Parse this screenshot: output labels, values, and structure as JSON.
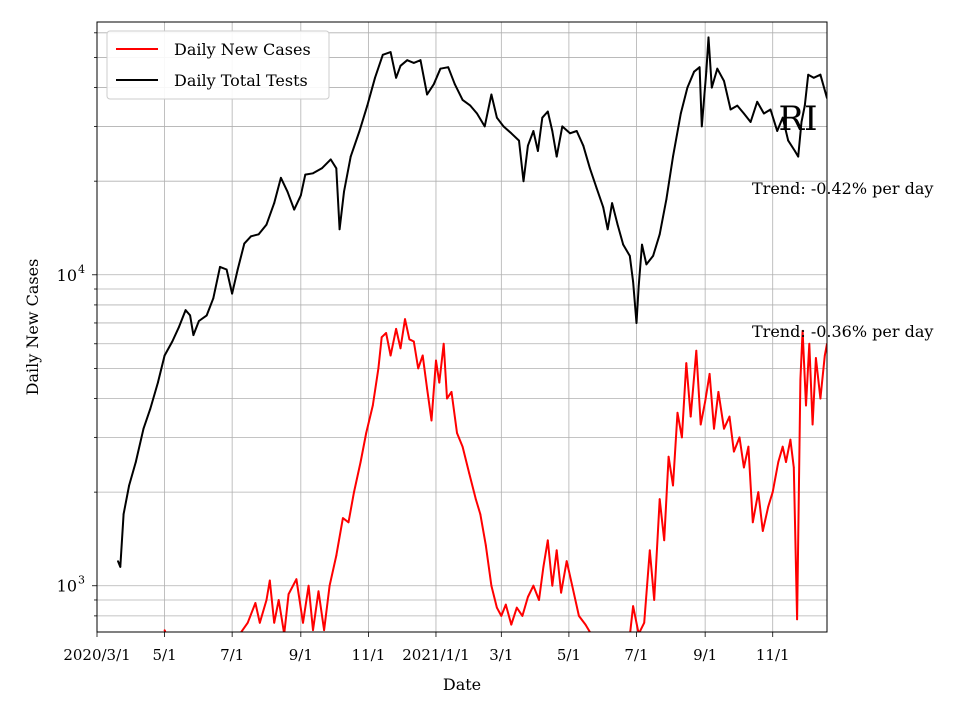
{
  "chart_data": {
    "type": "line",
    "title": "",
    "state_label": "RI",
    "xlabel": "Date",
    "ylabel": "Daily New Cases",
    "yscale": "log",
    "ylim": [
      710,
      65000
    ],
    "xlim": [
      "2020-03-01",
      "2021-12-20"
    ],
    "grid": true,
    "legend_position": "top-left",
    "x_ticks": [
      {
        "date": "2020-03-01",
        "label": "2020/3/1"
      },
      {
        "date": "2020-05-01",
        "label": "5/1"
      },
      {
        "date": "2020-07-01",
        "label": "7/1"
      },
      {
        "date": "2020-09-01",
        "label": "9/1"
      },
      {
        "date": "2020-11-01",
        "label": "11/1"
      },
      {
        "date": "2021-01-01",
        "label": "2021/1/1"
      },
      {
        "date": "2021-03-01",
        "label": "3/1"
      },
      {
        "date": "2021-05-01",
        "label": "5/1"
      },
      {
        "date": "2021-07-01",
        "label": "7/1"
      },
      {
        "date": "2021-09-01",
        "label": "9/1"
      },
      {
        "date": "2021-11-01",
        "label": "11/1"
      }
    ],
    "y_major_ticks": [
      {
        "value": 1000,
        "base": "10",
        "exp": "3"
      },
      {
        "value": 10000,
        "base": "10",
        "exp": "4"
      }
    ],
    "annotations": [
      "Trend: -0.42% per day",
      "Trend: -0.36% per day"
    ],
    "series": [
      {
        "name": "Daily New Cases",
        "color": "#ff0000",
        "points": [
          [
            "2020-05-01",
            720
          ],
          [
            "2020-05-03",
            690
          ],
          [
            "2020-07-01",
            650
          ],
          [
            "2020-07-08",
            700
          ],
          [
            "2020-07-15",
            760
          ],
          [
            "2020-07-22",
            880
          ],
          [
            "2020-07-26",
            760
          ],
          [
            "2020-08-01",
            900
          ],
          [
            "2020-08-04",
            1040
          ],
          [
            "2020-08-08",
            760
          ],
          [
            "2020-08-12",
            900
          ],
          [
            "2020-08-17",
            700
          ],
          [
            "2020-08-21",
            940
          ],
          [
            "2020-08-28",
            1050
          ],
          [
            "2020-09-03",
            760
          ],
          [
            "2020-09-08",
            1000
          ],
          [
            "2020-09-12",
            720
          ],
          [
            "2020-09-17",
            960
          ],
          [
            "2020-09-22",
            720
          ],
          [
            "2020-09-27",
            1000
          ],
          [
            "2020-10-03",
            1250
          ],
          [
            "2020-10-09",
            1650
          ],
          [
            "2020-10-14",
            1600
          ],
          [
            "2020-10-19",
            2000
          ],
          [
            "2020-10-25",
            2500
          ],
          [
            "2020-10-30",
            3100
          ],
          [
            "2020-11-05",
            3800
          ],
          [
            "2020-11-10",
            5000
          ],
          [
            "2020-11-13",
            6300
          ],
          [
            "2020-11-17",
            6500
          ],
          [
            "2020-11-21",
            5500
          ],
          [
            "2020-11-26",
            6700
          ],
          [
            "2020-11-30",
            5800
          ],
          [
            "2020-12-04",
            7200
          ],
          [
            "2020-12-08",
            6200
          ],
          [
            "2020-12-12",
            6100
          ],
          [
            "2020-12-16",
            5000
          ],
          [
            "2020-12-20",
            5500
          ],
          [
            "2020-12-24",
            4300
          ],
          [
            "2020-12-28",
            3400
          ],
          [
            "2021-01-01",
            5300
          ],
          [
            "2021-01-04",
            4500
          ],
          [
            "2021-01-08",
            6000
          ],
          [
            "2021-01-11",
            4000
          ],
          [
            "2021-01-15",
            4200
          ],
          [
            "2021-01-20",
            3100
          ],
          [
            "2021-01-25",
            2800
          ],
          [
            "2021-01-31",
            2300
          ],
          [
            "2021-02-06",
            1900
          ],
          [
            "2021-02-10",
            1700
          ],
          [
            "2021-02-15",
            1350
          ],
          [
            "2021-02-20",
            1000
          ],
          [
            "2021-02-25",
            850
          ],
          [
            "2021-03-01",
            800
          ],
          [
            "2021-03-05",
            870
          ],
          [
            "2021-03-10",
            750
          ],
          [
            "2021-03-15",
            850
          ],
          [
            "2021-03-20",
            800
          ],
          [
            "2021-03-25",
            920
          ],
          [
            "2021-03-30",
            1000
          ],
          [
            "2021-04-04",
            900
          ],
          [
            "2021-04-08",
            1150
          ],
          [
            "2021-04-12",
            1400
          ],
          [
            "2021-04-16",
            1000
          ],
          [
            "2021-04-20",
            1300
          ],
          [
            "2021-04-24",
            950
          ],
          [
            "2021-04-29",
            1200
          ],
          [
            "2021-05-04",
            1000
          ],
          [
            "2021-05-10",
            800
          ],
          [
            "2021-05-16",
            750
          ],
          [
            "2021-05-20",
            710
          ],
          [
            "2021-05-24",
            690
          ],
          [
            "2021-06-25",
            690
          ],
          [
            "2021-06-28",
            860
          ],
          [
            "2021-07-03",
            700
          ],
          [
            "2021-07-08",
            760
          ],
          [
            "2021-07-13",
            1300
          ],
          [
            "2021-07-17",
            900
          ],
          [
            "2021-07-22",
            1900
          ],
          [
            "2021-07-26",
            1400
          ],
          [
            "2021-07-30",
            2600
          ],
          [
            "2021-08-03",
            2100
          ],
          [
            "2021-08-07",
            3600
          ],
          [
            "2021-08-11",
            3000
          ],
          [
            "2021-08-15",
            5200
          ],
          [
            "2021-08-19",
            3500
          ],
          [
            "2021-08-24",
            5700
          ],
          [
            "2021-08-28",
            3300
          ],
          [
            "2021-09-01",
            3900
          ],
          [
            "2021-09-05",
            4800
          ],
          [
            "2021-09-09",
            3200
          ],
          [
            "2021-09-13",
            4200
          ],
          [
            "2021-09-18",
            3200
          ],
          [
            "2021-09-23",
            3500
          ],
          [
            "2021-09-27",
            2700
          ],
          [
            "2021-10-02",
            3000
          ],
          [
            "2021-10-06",
            2400
          ],
          [
            "2021-10-10",
            2800
          ],
          [
            "2021-10-14",
            1600
          ],
          [
            "2021-10-19",
            2000
          ],
          [
            "2021-10-23",
            1500
          ],
          [
            "2021-10-28",
            1800
          ],
          [
            "2021-11-01",
            2000
          ],
          [
            "2021-11-06",
            2500
          ],
          [
            "2021-11-10",
            2800
          ],
          [
            "2021-11-13",
            2500
          ],
          [
            "2021-11-17",
            2950
          ],
          [
            "2021-11-20",
            2400
          ],
          [
            "2021-11-23",
            780
          ],
          [
            "2021-11-26",
            4600
          ],
          [
            "2021-11-28",
            6600
          ],
          [
            "2021-12-01",
            3800
          ],
          [
            "2021-12-04",
            6000
          ],
          [
            "2021-12-07",
            3300
          ],
          [
            "2021-12-10",
            5400
          ],
          [
            "2021-12-14",
            4000
          ],
          [
            "2021-12-18",
            5500
          ],
          [
            "2021-12-20",
            6000
          ]
        ]
      },
      {
        "name": "Daily Total Tests",
        "color": "#000000",
        "points": [
          [
            "2020-03-20",
            1200
          ],
          [
            "2020-03-22",
            1150
          ],
          [
            "2020-03-25",
            1700
          ],
          [
            "2020-03-30",
            2100
          ],
          [
            "2020-04-05",
            2500
          ],
          [
            "2020-04-12",
            3200
          ],
          [
            "2020-04-18",
            3700
          ],
          [
            "2020-04-25",
            4500
          ],
          [
            "2020-05-01",
            5500
          ],
          [
            "2020-05-08",
            6100
          ],
          [
            "2020-05-14",
            6800
          ],
          [
            "2020-05-20",
            7700
          ],
          [
            "2020-05-24",
            7400
          ],
          [
            "2020-05-27",
            6400
          ],
          [
            "2020-06-01",
            7100
          ],
          [
            "2020-06-08",
            7400
          ],
          [
            "2020-06-14",
            8400
          ],
          [
            "2020-06-20",
            10600
          ],
          [
            "2020-06-26",
            10400
          ],
          [
            "2020-07-01",
            8700
          ],
          [
            "2020-07-06",
            10400
          ],
          [
            "2020-07-12",
            12600
          ],
          [
            "2020-07-18",
            13300
          ],
          [
            "2020-07-25",
            13500
          ],
          [
            "2020-08-01",
            14500
          ],
          [
            "2020-08-08",
            17000
          ],
          [
            "2020-08-14",
            20500
          ],
          [
            "2020-08-20",
            18500
          ],
          [
            "2020-08-26",
            16200
          ],
          [
            "2020-09-01",
            18000
          ],
          [
            "2020-09-05",
            21000
          ],
          [
            "2020-09-12",
            21200
          ],
          [
            "2020-09-20",
            22000
          ],
          [
            "2020-09-28",
            23500
          ],
          [
            "2020-10-03",
            22000
          ],
          [
            "2020-10-06",
            14000
          ],
          [
            "2020-10-10",
            18500
          ],
          [
            "2020-10-16",
            24000
          ],
          [
            "2020-10-24",
            29000
          ],
          [
            "2020-10-31",
            35000
          ],
          [
            "2020-11-07",
            43000
          ],
          [
            "2020-11-14",
            51000
          ],
          [
            "2020-11-21",
            52000
          ],
          [
            "2020-11-26",
            43000
          ],
          [
            "2020-11-30",
            47000
          ],
          [
            "2020-12-06",
            49000
          ],
          [
            "2020-12-12",
            48000
          ],
          [
            "2020-12-18",
            49000
          ],
          [
            "2020-12-24",
            38000
          ],
          [
            "2020-12-30",
            41000
          ],
          [
            "2021-01-05",
            46000
          ],
          [
            "2021-01-12",
            46500
          ],
          [
            "2021-01-18",
            41000
          ],
          [
            "2021-01-25",
            36500
          ],
          [
            "2021-02-01",
            35000
          ],
          [
            "2021-02-07",
            33000
          ],
          [
            "2021-02-14",
            30000
          ],
          [
            "2021-02-20",
            38000
          ],
          [
            "2021-02-25",
            32000
          ],
          [
            "2021-03-03",
            30000
          ],
          [
            "2021-03-10",
            28500
          ],
          [
            "2021-03-17",
            27000
          ],
          [
            "2021-03-21",
            20000
          ],
          [
            "2021-03-25",
            26000
          ],
          [
            "2021-03-30",
            29000
          ],
          [
            "2021-04-03",
            25000
          ],
          [
            "2021-04-07",
            32000
          ],
          [
            "2021-04-12",
            33500
          ],
          [
            "2021-04-16",
            29000
          ],
          [
            "2021-04-20",
            24000
          ],
          [
            "2021-04-25",
            30000
          ],
          [
            "2021-05-02",
            28500
          ],
          [
            "2021-05-08",
            29000
          ],
          [
            "2021-05-14",
            26000
          ],
          [
            "2021-05-20",
            22000
          ],
          [
            "2021-05-26",
            19000
          ],
          [
            "2021-06-01",
            16500
          ],
          [
            "2021-06-05",
            14000
          ],
          [
            "2021-06-09",
            17000
          ],
          [
            "2021-06-14",
            14500
          ],
          [
            "2021-06-19",
            12500
          ],
          [
            "2021-06-25",
            11500
          ],
          [
            "2021-06-28",
            9500
          ],
          [
            "2021-07-01",
            7000
          ],
          [
            "2021-07-03",
            9200
          ],
          [
            "2021-07-06",
            12500
          ],
          [
            "2021-07-10",
            10800
          ],
          [
            "2021-07-16",
            11500
          ],
          [
            "2021-07-22",
            13500
          ],
          [
            "2021-07-28",
            17500
          ],
          [
            "2021-08-03",
            24000
          ],
          [
            "2021-08-10",
            33000
          ],
          [
            "2021-08-16",
            40000
          ],
          [
            "2021-08-22",
            45000
          ],
          [
            "2021-08-27",
            46500
          ],
          [
            "2021-08-29",
            30000
          ],
          [
            "2021-09-02",
            45000
          ],
          [
            "2021-09-04",
            58000
          ],
          [
            "2021-09-07",
            40000
          ],
          [
            "2021-09-12",
            46000
          ],
          [
            "2021-09-18",
            42000
          ],
          [
            "2021-09-24",
            34000
          ],
          [
            "2021-09-30",
            35000
          ],
          [
            "2021-10-06",
            33000
          ],
          [
            "2021-10-12",
            31000
          ],
          [
            "2021-10-18",
            36000
          ],
          [
            "2021-10-24",
            33000
          ],
          [
            "2021-10-30",
            34000
          ],
          [
            "2021-11-05",
            29000
          ],
          [
            "2021-11-10",
            32000
          ],
          [
            "2021-11-15",
            27000
          ],
          [
            "2021-11-21",
            25000
          ],
          [
            "2021-11-24",
            24000
          ],
          [
            "2021-11-27",
            31000
          ],
          [
            "2021-11-30",
            35000
          ],
          [
            "2021-12-03",
            44000
          ],
          [
            "2021-12-08",
            43000
          ],
          [
            "2021-12-14",
            44000
          ],
          [
            "2021-12-20",
            37000
          ]
        ]
      }
    ]
  }
}
